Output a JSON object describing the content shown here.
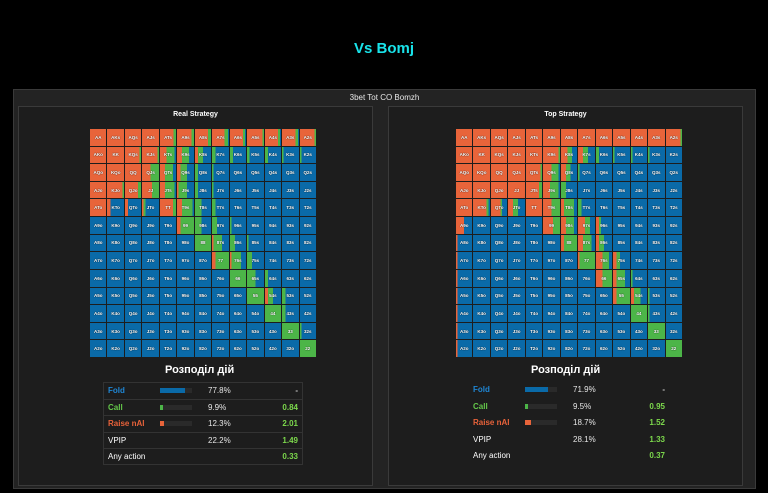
{
  "page_title": "Vs Bomj",
  "section_title": "3bet Tot CO Bomzh",
  "colors": {
    "fold": "#0a6aa8",
    "call": "#4cb548",
    "raise": "#e8643a",
    "accent": "#19e3ea"
  },
  "hands": [
    [
      "AA",
      "AKs",
      "AQs",
      "AJs",
      "ATs",
      "A9s",
      "A8s",
      "A7s",
      "A6s",
      "A5s",
      "A4s",
      "A3s",
      "A2s"
    ],
    [
      "AKo",
      "KK",
      "KQs",
      "KJs",
      "KTs",
      "K9s",
      "K8s",
      "K7s",
      "K6s",
      "K5s",
      "K4s",
      "K3s",
      "K2s"
    ],
    [
      "AQo",
      "KQo",
      "QQ",
      "QJs",
      "QTs",
      "Q9s",
      "Q8s",
      "Q7s",
      "Q6s",
      "Q5s",
      "Q4s",
      "Q3s",
      "Q2s"
    ],
    [
      "AJo",
      "KJo",
      "QJo",
      "JJ",
      "JTs",
      "J9s",
      "J8s",
      "J7s",
      "J6s",
      "J5s",
      "J4s",
      "J3s",
      "J2s"
    ],
    [
      "ATo",
      "KTo",
      "QTo",
      "JTo",
      "TT",
      "T9s",
      "T8s",
      "T7s",
      "T6s",
      "T5s",
      "T4s",
      "T3s",
      "T2s"
    ],
    [
      "A9o",
      "K9o",
      "Q9o",
      "J9o",
      "T9o",
      "99",
      "98s",
      "97s",
      "96s",
      "95s",
      "94s",
      "93s",
      "92s"
    ],
    [
      "A8o",
      "K8o",
      "Q8o",
      "J8o",
      "T8o",
      "98o",
      "88",
      "87s",
      "86s",
      "85s",
      "84s",
      "83s",
      "82s"
    ],
    [
      "A7o",
      "K7o",
      "Q7o",
      "J7o",
      "T7o",
      "97o",
      "87o",
      "77",
      "76s",
      "75s",
      "74s",
      "73s",
      "72s"
    ],
    [
      "A6o",
      "K6o",
      "Q6o",
      "J6o",
      "T6o",
      "96o",
      "86o",
      "76o",
      "66",
      "65s",
      "64s",
      "63s",
      "62s"
    ],
    [
      "A5o",
      "K5o",
      "Q5o",
      "J5o",
      "T5o",
      "95o",
      "85o",
      "75o",
      "65o",
      "55",
      "54s",
      "53s",
      "52s"
    ],
    [
      "A4o",
      "K4o",
      "Q4o",
      "J4o",
      "T4o",
      "94o",
      "84o",
      "74o",
      "64o",
      "54o",
      "44",
      "43s",
      "42s"
    ],
    [
      "A3o",
      "K3o",
      "Q3o",
      "J3o",
      "T3o",
      "93o",
      "83o",
      "73o",
      "63o",
      "53o",
      "43o",
      "33",
      "32s"
    ],
    [
      "A2o",
      "K2o",
      "Q2o",
      "J2o",
      "T2o",
      "92o",
      "82o",
      "72o",
      "62o",
      "52o",
      "42o",
      "32o",
      "22"
    ]
  ],
  "panels": [
    {
      "title": "Real Strategy",
      "dist_title": "Розподіл дій",
      "strategy": {
        "raise": [
          [
            1,
            1,
            1,
            1,
            0.85,
            0.85,
            0.8,
            0.75,
            0.8,
            0.9,
            0.8,
            0.8,
            0.9
          ],
          [
            1,
            1,
            0.9,
            0.9,
            0.4,
            0.3,
            0.2,
            0,
            0,
            0,
            0,
            0,
            0
          ],
          [
            1,
            1,
            1,
            0.5,
            0.3,
            0.2,
            0,
            0,
            0,
            0,
            0,
            0,
            0
          ],
          [
            1,
            0.9,
            0.8,
            0.6,
            0.3,
            0.1,
            0,
            0,
            0,
            0,
            0,
            0,
            0
          ],
          [
            1,
            0.2,
            0.2,
            0.1,
            0.8,
            0.3,
            0,
            0,
            0,
            0,
            0,
            0,
            0
          ],
          [
            0,
            0,
            0,
            0,
            0,
            0.2,
            0,
            0,
            0,
            0,
            0,
            0,
            0
          ],
          [
            0,
            0,
            0,
            0,
            0,
            0,
            0,
            0.1,
            0,
            0,
            0,
            0,
            0
          ],
          [
            0,
            0,
            0,
            0,
            0,
            0,
            0,
            0.2,
            0.1,
            0,
            0,
            0,
            0
          ],
          [
            0,
            0,
            0,
            0,
            0,
            0,
            0,
            0,
            0,
            0,
            0,
            0,
            0
          ],
          [
            0,
            0,
            0,
            0,
            0,
            0,
            0,
            0,
            0,
            0,
            0.2,
            0,
            0
          ],
          [
            0,
            0,
            0,
            0,
            0,
            0,
            0,
            0,
            0,
            0,
            0,
            0,
            0
          ],
          [
            0,
            0,
            0,
            0,
            0,
            0,
            0,
            0,
            0,
            0,
            0,
            0,
            0
          ],
          [
            0,
            0,
            0,
            0,
            0,
            0,
            0,
            0,
            0,
            0,
            0,
            0,
            0
          ]
        ],
        "call": [
          [
            0,
            0,
            0,
            0,
            0.15,
            0.15,
            0.2,
            0.2,
            0.15,
            0.1,
            0.15,
            0.15,
            0.1
          ],
          [
            0,
            0,
            0.1,
            0.1,
            0.5,
            0.4,
            0.3,
            0.2,
            0.2,
            0.15,
            0.2,
            0.1,
            0.1
          ],
          [
            0,
            0,
            0,
            0.5,
            0.5,
            0.4,
            0.2,
            0.1,
            0,
            0,
            0,
            0,
            0
          ],
          [
            0,
            0.1,
            0.2,
            0.4,
            0.6,
            0.5,
            0.2,
            0.1,
            0,
            0,
            0,
            0,
            0
          ],
          [
            0,
            0,
            0,
            0.1,
            0.2,
            0.6,
            0.4,
            0.2,
            0,
            0,
            0,
            0,
            0
          ],
          [
            0,
            0,
            0,
            0,
            0,
            0.8,
            0.4,
            0.3,
            0.1,
            0,
            0,
            0,
            0
          ],
          [
            0,
            0,
            0,
            0,
            0,
            0,
            1,
            0.5,
            0.3,
            0.1,
            0,
            0,
            0
          ],
          [
            0,
            0,
            0,
            0,
            0,
            0,
            0,
            0.8,
            0.6,
            0.3,
            0,
            0,
            0
          ],
          [
            0,
            0,
            0,
            0,
            0,
            0,
            0,
            0,
            1,
            0.5,
            0.2,
            0,
            0
          ],
          [
            0,
            0,
            0,
            0,
            0,
            0,
            0,
            0,
            0,
            1,
            0.3,
            0.2,
            0
          ],
          [
            0,
            0,
            0,
            0,
            0,
            0,
            0,
            0,
            0,
            0,
            1,
            0.2,
            0
          ],
          [
            0,
            0,
            0,
            0,
            0,
            0,
            0,
            0,
            0,
            0,
            0,
            1,
            0.1
          ],
          [
            0,
            0,
            0,
            0,
            0,
            0,
            0,
            0,
            0,
            0,
            0,
            0,
            1
          ]
        ]
      },
      "stats": [
        {
          "label": "Fold",
          "kind": "fold",
          "pct": "77.8%",
          "value": 77.8,
          "ev": "-"
        },
        {
          "label": "Call",
          "kind": "call",
          "pct": "9.9%",
          "value": 9.9,
          "ev": "0.84"
        },
        {
          "label": "Raise nAI",
          "kind": "raise",
          "pct": "12.3%",
          "value": 12.3,
          "ev": "2.01"
        }
      ],
      "vpip": {
        "label": "VPIP",
        "pct": "22.2%",
        "ev": "1.49"
      },
      "any": {
        "label": "Any action",
        "ev": "0.33"
      }
    },
    {
      "title": "Top Strategy",
      "dist_title": "Розподіл дій",
      "strategy": {
        "raise": [
          [
            1,
            1,
            1,
            1,
            1,
            1,
            1,
            1,
            1,
            1,
            1,
            1,
            0.9
          ],
          [
            1,
            1,
            1,
            1,
            1,
            0.9,
            0.4,
            0.3,
            0,
            0,
            0,
            0,
            0
          ],
          [
            1,
            1,
            1,
            1,
            0.9,
            0.5,
            0.3,
            0,
            0,
            0,
            0,
            0,
            0
          ],
          [
            1,
            1,
            1,
            1,
            0.8,
            0.4,
            0,
            0,
            0,
            0,
            0,
            0,
            0
          ],
          [
            1,
            0.8,
            0.6,
            0.3,
            1,
            0.5,
            0.2,
            0,
            0,
            0,
            0,
            0,
            0
          ],
          [
            0.5,
            0,
            0,
            0,
            0,
            0.6,
            0.3,
            0.4,
            0.2,
            0,
            0,
            0,
            0
          ],
          [
            0.1,
            0,
            0,
            0,
            0,
            0,
            0.2,
            0.3,
            0.2,
            0,
            0,
            0,
            0
          ],
          [
            0.1,
            0,
            0,
            0,
            0,
            0,
            0,
            0.1,
            0.4,
            0.2,
            0,
            0,
            0
          ],
          [
            0.1,
            0,
            0,
            0,
            0,
            0,
            0,
            0,
            0.4,
            0.2,
            0,
            0,
            0
          ],
          [
            0.1,
            0,
            0,
            0,
            0,
            0,
            0,
            0,
            0,
            0.2,
            0.2,
            0,
            0
          ],
          [
            0.1,
            0,
            0,
            0,
            0,
            0,
            0,
            0,
            0,
            0,
            0,
            0,
            0
          ],
          [
            0.1,
            0,
            0,
            0,
            0,
            0,
            0,
            0,
            0,
            0,
            0,
            0,
            0
          ],
          [
            0.1,
            0,
            0,
            0,
            0,
            0,
            0,
            0,
            0,
            0,
            0,
            0,
            0
          ]
        ],
        "call": [
          [
            0,
            0,
            0,
            0,
            0,
            0,
            0,
            0,
            0,
            0,
            0,
            0,
            0.1
          ],
          [
            0,
            0,
            0,
            0,
            0,
            0.1,
            0.3,
            0.3,
            0.2,
            0.1,
            0.1,
            0.1,
            0
          ],
          [
            0,
            0,
            0,
            0,
            0.1,
            0.4,
            0.3,
            0.1,
            0,
            0,
            0,
            0,
            0
          ],
          [
            0,
            0,
            0,
            0,
            0.2,
            0.5,
            0.3,
            0,
            0,
            0,
            0,
            0,
            0
          ],
          [
            0,
            0.1,
            0.1,
            0.3,
            0,
            0.5,
            0.6,
            0.2,
            0,
            0,
            0,
            0,
            0
          ],
          [
            0,
            0,
            0,
            0,
            0,
            0.4,
            0.5,
            0.3,
            0.1,
            0,
            0,
            0,
            0
          ],
          [
            0,
            0,
            0,
            0,
            0,
            0,
            0.8,
            0.5,
            0.3,
            0,
            0,
            0,
            0
          ],
          [
            0,
            0,
            0,
            0,
            0,
            0,
            0,
            0.9,
            0.4,
            0.2,
            0,
            0,
            0
          ],
          [
            0,
            0,
            0,
            0,
            0,
            0,
            0,
            0,
            0.6,
            0.5,
            0.1,
            0,
            0
          ],
          [
            0,
            0,
            0,
            0,
            0,
            0,
            0,
            0,
            0,
            0.8,
            0.4,
            0.1,
            0
          ],
          [
            0,
            0,
            0,
            0,
            0,
            0,
            0,
            0,
            0,
            0,
            1,
            0.1,
            0
          ],
          [
            0,
            0,
            0,
            0,
            0,
            0,
            0,
            0,
            0,
            0,
            0,
            1,
            0
          ],
          [
            0,
            0,
            0,
            0,
            0,
            0,
            0,
            0,
            0,
            0,
            0,
            0,
            1
          ]
        ]
      },
      "stats": [
        {
          "label": "Fold",
          "kind": "fold",
          "pct": "71.9%",
          "value": 71.9,
          "ev": "-"
        },
        {
          "label": "Call",
          "kind": "call",
          "pct": "9.5%",
          "value": 9.5,
          "ev": "0.95"
        },
        {
          "label": "Raise nAI",
          "kind": "raise",
          "pct": "18.7%",
          "value": 18.7,
          "ev": "1.52"
        }
      ],
      "vpip": {
        "label": "VPIP",
        "pct": "28.1%",
        "ev": "1.33"
      },
      "any": {
        "label": "Any action",
        "ev": "0.37"
      }
    }
  ]
}
